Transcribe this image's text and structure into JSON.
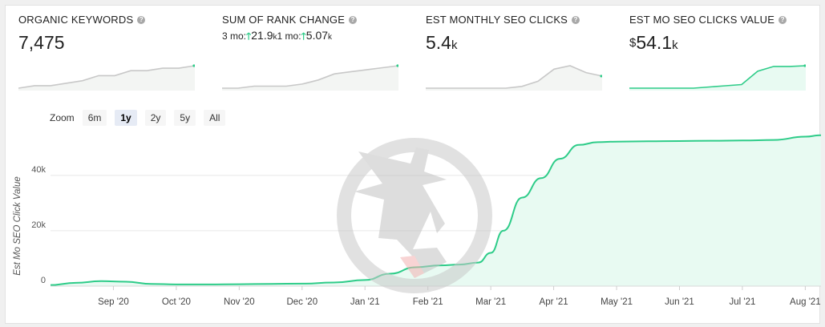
{
  "metrics": [
    {
      "label": "ORGANIC KEYWORDS",
      "value": "7,475",
      "suffix": ""
    },
    {
      "label": "SUM OF RANK CHANGE",
      "part1_prefix": "3 mo:",
      "part1_value": "21.9",
      "part1_suffix": "k",
      "part2_prefix": "1 mo:",
      "part2_value": "5.07",
      "part2_suffix": "k"
    },
    {
      "label": "EST MONTHLY SEO CLICKS",
      "value": "5.4",
      "suffix": "k"
    },
    {
      "label": "EST MO SEO CLICKS VALUE",
      "prefix": "$",
      "value": "54.1",
      "suffix": "k"
    }
  ],
  "zoom": {
    "label": "Zoom",
    "options": [
      "6m",
      "1y",
      "2y",
      "5y",
      "All"
    ],
    "active": "1y"
  },
  "colors": {
    "accent": "#2ecc89",
    "accent_fill": "#e8faf2",
    "spark_gray": "#c8c8c8",
    "spark_fill": "#f3f5f3",
    "up_arrow": "#2ecc89"
  },
  "chart_data": {
    "type": "area",
    "ylabel": "Est Mo SEO Click Value",
    "xlabel": "",
    "ylim": [
      0,
      55000
    ],
    "yticks": [
      0,
      20000,
      40000
    ],
    "ytick_labels": [
      "0",
      "20k",
      "40k"
    ],
    "xtick_labels": [
      "Sep '20",
      "Oct '20",
      "Nov '20",
      "Dec '20",
      "Jan '21",
      "Feb '21",
      "Mar '21",
      "Apr '21",
      "May '21",
      "Jun '21",
      "Jul '21",
      "Aug '21"
    ],
    "xtick_positions": [
      1,
      2,
      3,
      4,
      5,
      6,
      7,
      8,
      9,
      10,
      11,
      12
    ],
    "xlim": [
      0.0,
      12.25
    ],
    "grid": true,
    "series": [
      {
        "x": [
          0.0,
          0.4,
          0.8,
          1.2,
          1.6,
          2.0,
          2.5,
          3.0,
          3.5,
          4.0,
          4.5,
          5.0,
          5.4,
          5.8,
          6.2,
          6.5,
          6.8,
          7.0,
          7.2,
          7.5,
          7.8,
          8.1,
          8.4,
          8.7,
          9.0,
          9.5,
          10.0,
          10.5,
          11.0,
          11.5,
          12.0,
          12.25
        ],
        "y": [
          400,
          1200,
          1800,
          1600,
          800,
          600,
          600,
          700,
          800,
          900,
          1300,
          2200,
          4500,
          6800,
          7500,
          7800,
          8500,
          12000,
          20000,
          32000,
          39000,
          46000,
          51000,
          52000,
          52200,
          52300,
          52400,
          52500,
          52600,
          52800,
          54000,
          54500
        ]
      }
    ]
  },
  "sparklines": [
    {
      "values": [
        2,
        3,
        3,
        4,
        5,
        7,
        7,
        9,
        9,
        10,
        10,
        11
      ],
      "style": "gray"
    },
    {
      "values": [
        1,
        1,
        2,
        2,
        2,
        3,
        5,
        8,
        9,
        10,
        11,
        12
      ],
      "style": "gray"
    },
    {
      "values": [
        1,
        1,
        1,
        1,
        1,
        1,
        2,
        5,
        12,
        14,
        10,
        8
      ],
      "style": "gray"
    },
    {
      "values": [
        0,
        0,
        0,
        0,
        0,
        0.5,
        1,
        1.5,
        7,
        9,
        9,
        9.3
      ],
      "style": "green"
    }
  ]
}
